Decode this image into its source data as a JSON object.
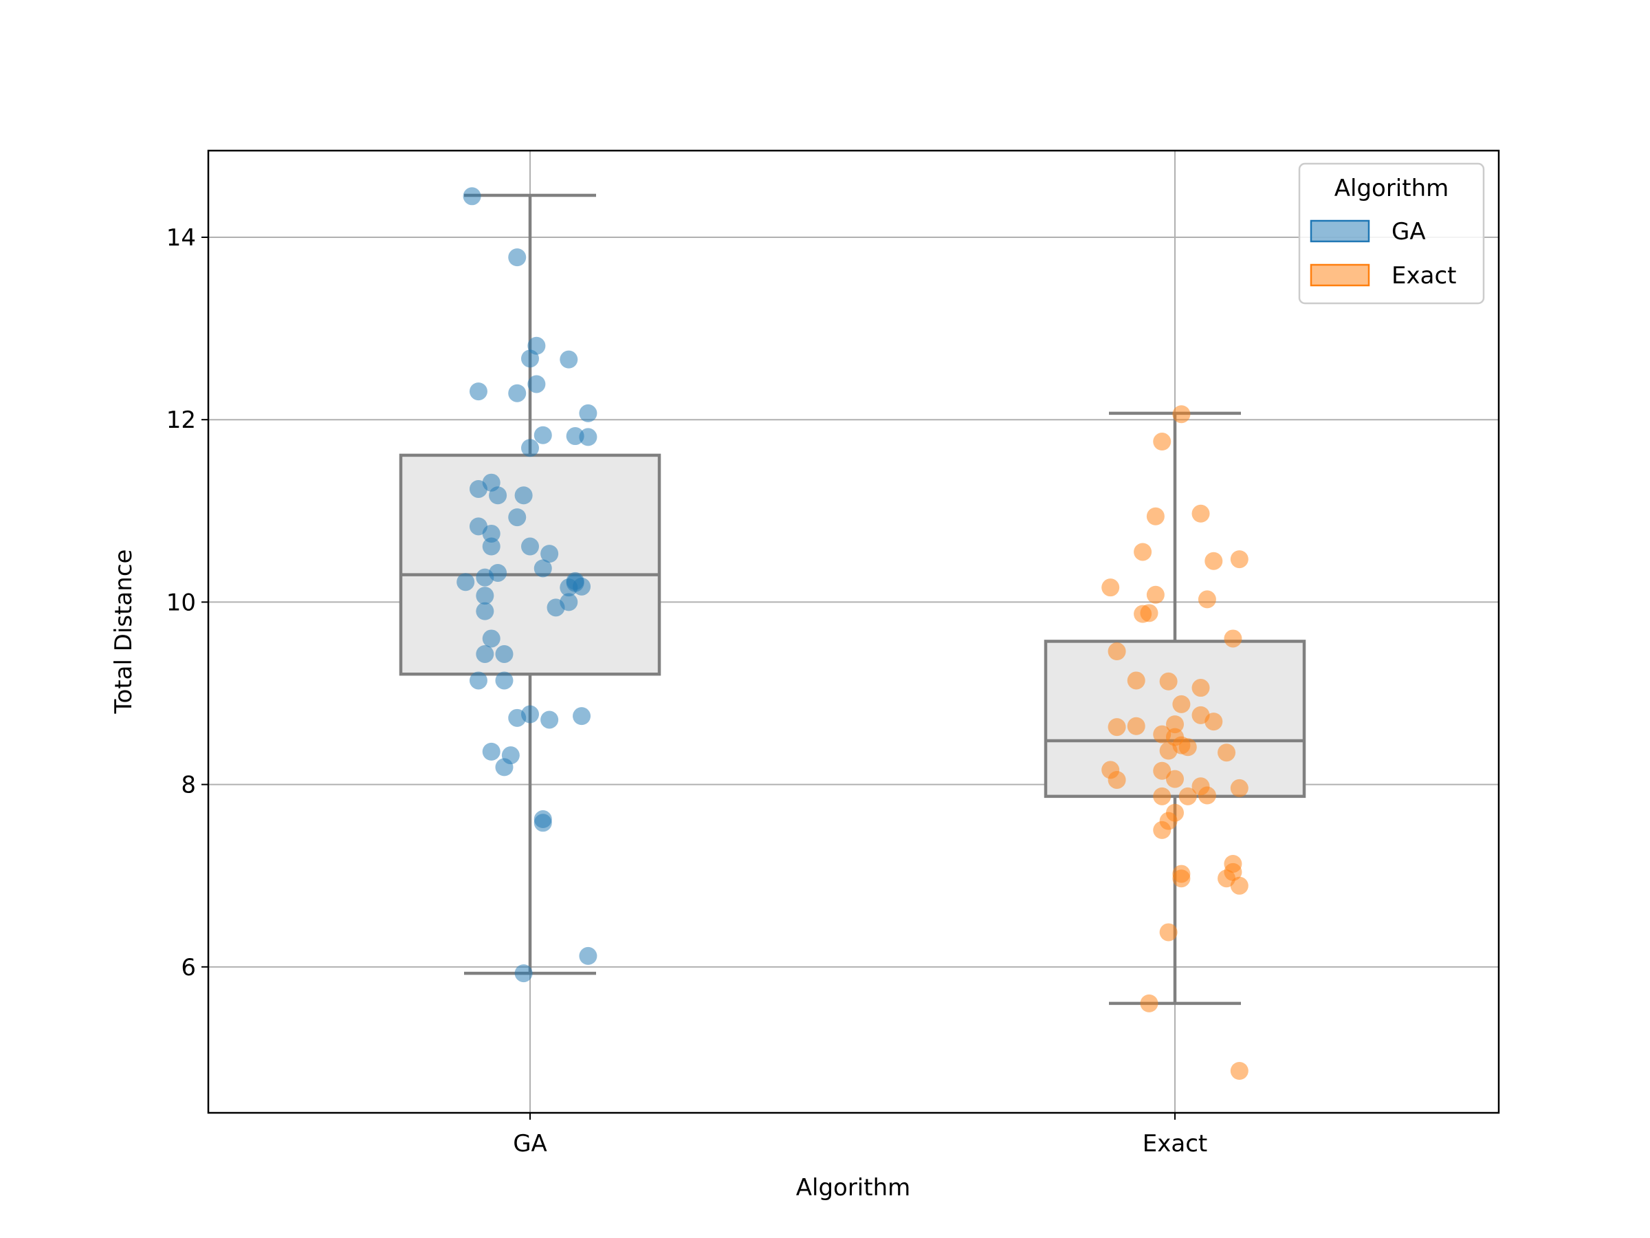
{
  "chart_data": {
    "type": "box",
    "xlabel": "Algorithm",
    "ylabel": "Total Distance",
    "categories": [
      "GA",
      "Exact"
    ],
    "ylim": [
      4.4,
      14.95
    ],
    "yticks": [
      6,
      8,
      10,
      12,
      14
    ],
    "grid": true,
    "legend": {
      "title": "Algorithm",
      "placement": "top-right",
      "entries": [
        {
          "label": "GA",
          "color": "#1f77b4"
        },
        {
          "label": "Exact",
          "color": "#ff7f0e"
        }
      ]
    },
    "box_style": {
      "fill": "#e8e8e8",
      "edge": "#808080"
    },
    "series": [
      {
        "name": "GA",
        "color": "#1f77b4",
        "box": {
          "whisker_low": 5.93,
          "q1": 9.21,
          "median": 10.3,
          "q3": 11.61,
          "whisker_high": 14.46
        },
        "points": [
          [
            -0.09,
            14.45
          ],
          [
            -0.02,
            13.78
          ],
          [
            0.01,
            12.81
          ],
          [
            0.06,
            12.66
          ],
          [
            0.0,
            12.67
          ],
          [
            -0.08,
            12.31
          ],
          [
            -0.02,
            12.29
          ],
          [
            0.01,
            12.39
          ],
          [
            0.09,
            12.07
          ],
          [
            0.02,
            11.83
          ],
          [
            0.07,
            11.82
          ],
          [
            0.09,
            11.81
          ],
          [
            0.0,
            11.69
          ],
          [
            -0.06,
            11.31
          ],
          [
            -0.08,
            11.24
          ],
          [
            -0.05,
            11.17
          ],
          [
            -0.01,
            11.17
          ],
          [
            -0.02,
            10.93
          ],
          [
            -0.08,
            10.83
          ],
          [
            -0.06,
            10.75
          ],
          [
            -0.06,
            10.61
          ],
          [
            0.0,
            10.61
          ],
          [
            0.03,
            10.53
          ],
          [
            0.02,
            10.37
          ],
          [
            -0.05,
            10.32
          ],
          [
            -0.07,
            10.27
          ],
          [
            -0.1,
            10.22
          ],
          [
            0.07,
            10.23
          ],
          [
            0.07,
            10.21
          ],
          [
            0.08,
            10.17
          ],
          [
            0.06,
            10.16
          ],
          [
            -0.07,
            10.07
          ],
          [
            0.06,
            10.0
          ],
          [
            0.04,
            9.94
          ],
          [
            -0.07,
            9.9
          ],
          [
            -0.06,
            9.6
          ],
          [
            -0.07,
            9.43
          ],
          [
            -0.04,
            9.43
          ],
          [
            -0.08,
            9.14
          ],
          [
            -0.04,
            9.14
          ],
          [
            0.0,
            8.77
          ],
          [
            -0.02,
            8.73
          ],
          [
            0.03,
            8.71
          ],
          [
            0.08,
            8.75
          ],
          [
            -0.06,
            8.36
          ],
          [
            -0.03,
            8.32
          ],
          [
            -0.04,
            8.19
          ],
          [
            0.02,
            7.62
          ],
          [
            0.02,
            7.58
          ],
          [
            0.09,
            6.12
          ],
          [
            -0.01,
            5.93
          ]
        ]
      },
      {
        "name": "Exact",
        "color": "#ff7f0e",
        "box": {
          "whisker_low": 5.6,
          "q1": 7.87,
          "median": 8.48,
          "q3": 9.57,
          "whisker_high": 12.07
        },
        "points": [
          [
            0.01,
            12.06
          ],
          [
            -0.02,
            11.76
          ],
          [
            0.04,
            10.97
          ],
          [
            -0.03,
            10.94
          ],
          [
            -0.05,
            10.55
          ],
          [
            0.1,
            10.47
          ],
          [
            0.06,
            10.45
          ],
          [
            -0.1,
            10.16
          ],
          [
            -0.03,
            10.08
          ],
          [
            0.05,
            10.03
          ],
          [
            -0.04,
            9.88
          ],
          [
            -0.05,
            9.87
          ],
          [
            0.09,
            9.6
          ],
          [
            -0.09,
            9.46
          ],
          [
            -0.06,
            9.14
          ],
          [
            -0.01,
            9.13
          ],
          [
            0.04,
            9.06
          ],
          [
            0.01,
            8.88
          ],
          [
            0.04,
            8.76
          ],
          [
            0.06,
            8.69
          ],
          [
            -0.06,
            8.64
          ],
          [
            0.0,
            8.66
          ],
          [
            -0.09,
            8.63
          ],
          [
            -0.02,
            8.55
          ],
          [
            0.0,
            8.52
          ],
          [
            0.01,
            8.43
          ],
          [
            0.02,
            8.41
          ],
          [
            -0.01,
            8.37
          ],
          [
            0.08,
            8.35
          ],
          [
            -0.1,
            8.16
          ],
          [
            -0.02,
            8.15
          ],
          [
            0.0,
            8.06
          ],
          [
            -0.09,
            8.05
          ],
          [
            0.04,
            7.98
          ],
          [
            0.1,
            7.96
          ],
          [
            0.05,
            7.88
          ],
          [
            0.02,
            7.87
          ],
          [
            -0.02,
            7.87
          ],
          [
            0.0,
            7.69
          ],
          [
            -0.01,
            7.6
          ],
          [
            -0.02,
            7.5
          ],
          [
            0.09,
            7.13
          ],
          [
            0.09,
            7.04
          ],
          [
            0.01,
            7.02
          ],
          [
            0.08,
            6.97
          ],
          [
            0.01,
            6.97
          ],
          [
            0.1,
            6.89
          ],
          [
            -0.01,
            6.38
          ],
          [
            -0.04,
            5.6
          ],
          [
            0.1,
            4.86
          ]
        ]
      }
    ]
  }
}
